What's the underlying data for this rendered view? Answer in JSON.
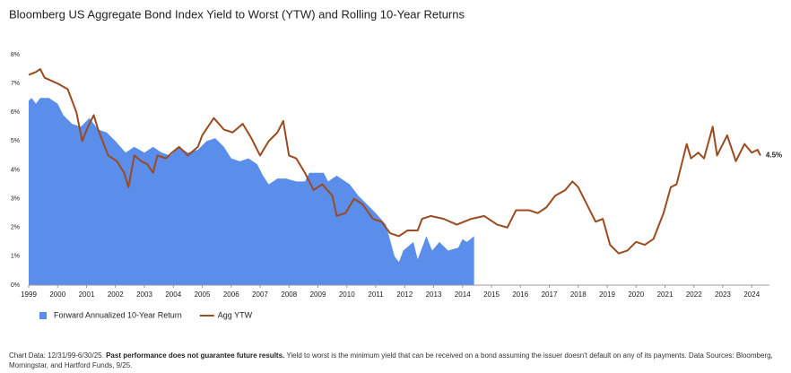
{
  "chart_data": {
    "type": "line",
    "title": "Bloomberg US Aggregate Bond Index Yield to Worst (YTW) and Rolling 10-Year Returns",
    "xlim": [
      1999,
      2024.6
    ],
    "xticks": [
      1999,
      2000,
      2001,
      2002,
      2003,
      2004,
      2005,
      2006,
      2007,
      2008,
      2009,
      2010,
      2011,
      2012,
      2013,
      2014,
      2015,
      2016,
      2017,
      2018,
      2019,
      2020,
      2021,
      2022,
      2023,
      2024
    ],
    "ylim": [
      0,
      8
    ],
    "yticks": [
      {
        "value": 0,
        "label": "0%"
      },
      {
        "value": 1,
        "label": "1%"
      },
      {
        "value": 2,
        "label": "2%"
      },
      {
        "value": 3,
        "label": "3%"
      },
      {
        "value": 4,
        "label": "4%"
      },
      {
        "value": 5,
        "label": "5%"
      },
      {
        "value": 6,
        "label": "6%"
      },
      {
        "value": 7,
        "label": "7%"
      },
      {
        "value": 8,
        "label": "8%"
      }
    ],
    "grid": false,
    "legend": "bottom-left",
    "series": [
      {
        "name": "Forward Annualized 10-Year Return",
        "style": "area",
        "color": "#5b8dea",
        "x": [
          1999.0,
          1999.1,
          1999.25,
          1999.4,
          1999.7,
          2000.0,
          2000.2,
          2000.5,
          2000.8,
          2001.1,
          2001.4,
          2001.7,
          2002.0,
          2002.35,
          2002.65,
          2003.0,
          2003.3,
          2003.6,
          2003.9,
          2004.2,
          2004.5,
          2004.85,
          2005.15,
          2005.45,
          2005.75,
          2006.0,
          2006.3,
          2006.6,
          2006.9,
          2007.1,
          2007.3,
          2007.6,
          2007.9,
          2008.25,
          2008.55,
          2008.7,
          2009.0,
          2009.2,
          2009.35,
          2009.65,
          2009.8,
          2010.1,
          2010.4,
          2010.7,
          2011.0,
          2011.35,
          2011.65,
          2011.8,
          2011.95,
          2012.3,
          2012.45,
          2012.75,
          2012.95,
          2013.2,
          2013.5,
          2013.85,
          2014.0,
          2014.15,
          2014.4
        ],
        "values": [
          6.4,
          6.5,
          6.3,
          6.5,
          6.5,
          6.3,
          5.9,
          5.6,
          5.5,
          5.8,
          5.4,
          5.3,
          5.0,
          4.6,
          4.8,
          4.6,
          4.8,
          4.6,
          4.5,
          4.8,
          4.6,
          4.7,
          5.0,
          5.1,
          4.8,
          4.4,
          4.3,
          4.4,
          4.2,
          3.8,
          3.5,
          3.7,
          3.7,
          3.6,
          3.6,
          3.9,
          3.9,
          3.9,
          3.6,
          3.8,
          3.7,
          3.5,
          3.1,
          2.8,
          2.5,
          2.1,
          1.0,
          0.8,
          1.2,
          1.5,
          0.9,
          1.7,
          1.2,
          1.5,
          1.2,
          1.3,
          1.6,
          1.5,
          1.7
        ]
      },
      {
        "name": "Agg YTW",
        "style": "line",
        "color": "#9c4a1f",
        "x": [
          1999.0,
          1999.25,
          1999.4,
          1999.55,
          2000.0,
          2000.35,
          2000.65,
          2000.85,
          2001.05,
          2001.25,
          2001.4,
          2001.75,
          2002.05,
          2002.3,
          2002.45,
          2002.65,
          2002.9,
          2003.1,
          2003.3,
          2003.45,
          2003.75,
          2003.95,
          2004.2,
          2004.5,
          2004.85,
          2005.0,
          2005.4,
          2005.75,
          2006.05,
          2006.4,
          2006.7,
          2007.0,
          2007.3,
          2007.6,
          2007.8,
          2008.0,
          2008.25,
          2008.55,
          2008.85,
          2009.15,
          2009.5,
          2009.65,
          2009.95,
          2010.25,
          2010.55,
          2010.9,
          2011.2,
          2011.5,
          2011.8,
          2012.1,
          2012.45,
          2012.6,
          2012.9,
          2013.35,
          2013.8,
          2014.3,
          2014.75,
          2015.2,
          2015.55,
          2015.85,
          2016.3,
          2016.6,
          2016.9,
          2017.2,
          2017.55,
          2017.8,
          2018.0,
          2018.3,
          2018.6,
          2018.85,
          2019.1,
          2019.4,
          2019.7,
          2020.0,
          2020.3,
          2020.6,
          2020.95,
          2021.2,
          2021.4,
          2021.75,
          2021.9,
          2022.15,
          2022.35,
          2022.65,
          2022.8,
          2023.15,
          2023.45,
          2023.75,
          2024.0,
          2024.2,
          2024.3
        ],
        "values": [
          7.3,
          7.4,
          7.5,
          7.2,
          7.0,
          6.8,
          6.0,
          5.0,
          5.5,
          5.9,
          5.4,
          4.5,
          4.3,
          3.9,
          3.4,
          4.5,
          4.3,
          4.2,
          3.9,
          4.5,
          4.4,
          4.6,
          4.8,
          4.5,
          4.8,
          5.2,
          5.8,
          5.4,
          5.3,
          5.6,
          5.1,
          4.5,
          5.0,
          5.3,
          5.7,
          4.5,
          4.4,
          3.9,
          3.3,
          3.5,
          3.1,
          2.4,
          2.5,
          3.0,
          2.8,
          2.3,
          2.2,
          1.8,
          1.7,
          1.9,
          1.9,
          2.3,
          2.4,
          2.3,
          2.1,
          2.3,
          2.4,
          2.1,
          2.0,
          2.6,
          2.6,
          2.5,
          2.7,
          3.1,
          3.3,
          3.6,
          3.4,
          2.8,
          2.2,
          2.3,
          1.4,
          1.1,
          1.2,
          1.5,
          1.4,
          1.6,
          2.5,
          3.4,
          3.5,
          4.9,
          4.4,
          4.6,
          4.4,
          5.5,
          4.5,
          5.2,
          4.3,
          4.9,
          4.6,
          4.7,
          4.5
        ],
        "value_labels": [
          null,
          null,
          null,
          null,
          null,
          null,
          null,
          null,
          null,
          null,
          null,
          null,
          null,
          null,
          null,
          null,
          null,
          null,
          null,
          null,
          null,
          null,
          null,
          null,
          null,
          null,
          null,
          null,
          null,
          null,
          null,
          null,
          null,
          null,
          null,
          null,
          null,
          null,
          null,
          null,
          null,
          null,
          null,
          null,
          null,
          null,
          null,
          null,
          null,
          null,
          null,
          null,
          null,
          null,
          null,
          null,
          null,
          null,
          null,
          null,
          null,
          null,
          null,
          null,
          null,
          null,
          null,
          null,
          null,
          null,
          null,
          null,
          null,
          null,
          null,
          null,
          null,
          null,
          null,
          null,
          null,
          null,
          null,
          null,
          null,
          null,
          null,
          null,
          null,
          null,
          "4.5%"
        ]
      }
    ],
    "footnote": {
      "lead": "Chart Data: 12/31/99-6/30/25.",
      "bold": "Past performance does not guarantee future results.",
      "rest": "Yield to worst is the minimum yield that can be received on a bond assuming the issuer doesn't default on any of its payments. Data Sources: Bloomberg, Morningstar, and Hartford Funds, 9/25."
    }
  }
}
